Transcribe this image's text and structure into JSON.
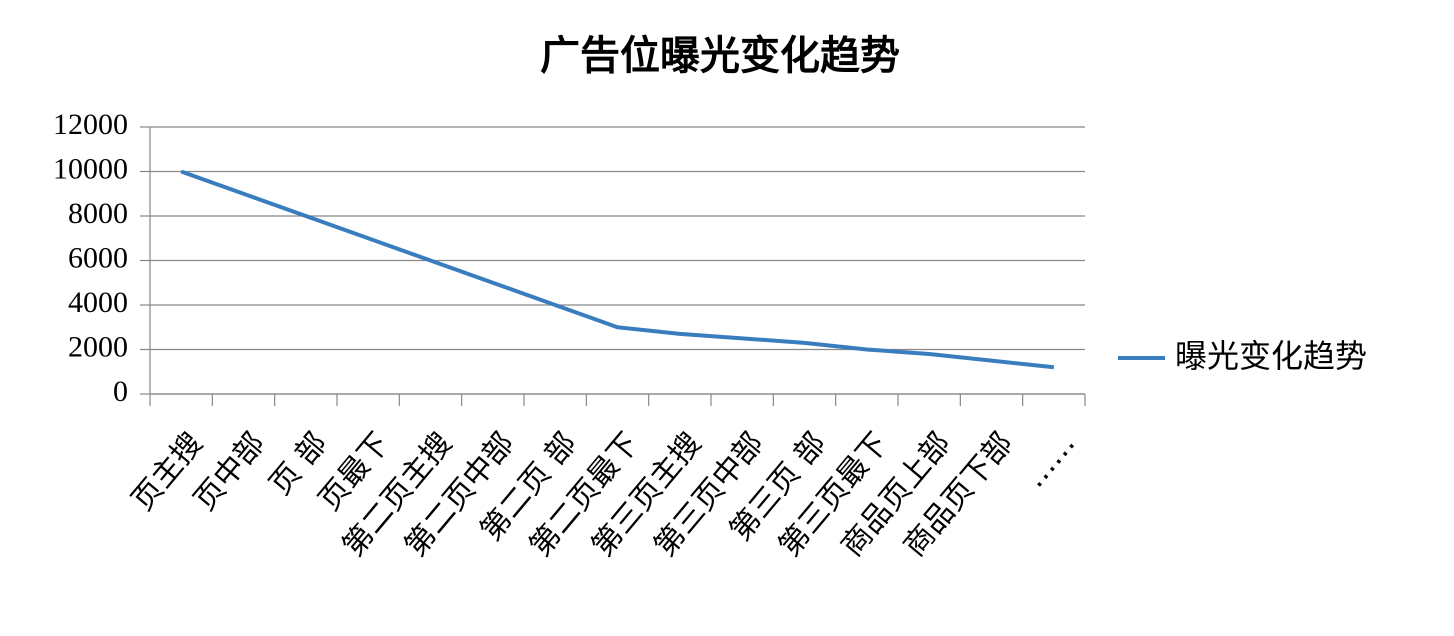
{
  "chart_data": {
    "type": "line",
    "title": "广告位曝光变化趋势",
    "categories": [
      "页主搜",
      "页中部",
      "页  部",
      "页最下",
      "第二页主搜",
      "第二页中部",
      "第二页  部",
      "第二页最下",
      "第三页主搜",
      "第三页中部",
      "第三页  部",
      "第三页最下",
      "商品页上部",
      "商品页下部",
      "……"
    ],
    "series": [
      {
        "name": "曝光变化趋势",
        "color": "#3a7dbf",
        "values": [
          10000,
          9000,
          8000,
          7000,
          6000,
          5000,
          4000,
          3000,
          2700,
          2500,
          2300,
          2000,
          1800,
          1500,
          1200
        ]
      }
    ],
    "ylim": [
      0,
      12000
    ],
    "yticks": [
      0,
      2000,
      4000,
      6000,
      8000,
      10000,
      12000
    ],
    "grid": true,
    "legend": "right"
  }
}
